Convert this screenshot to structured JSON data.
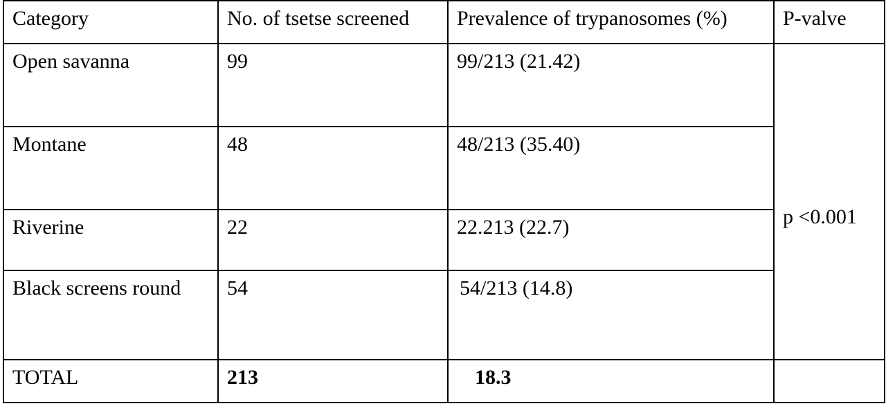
{
  "table": {
    "headers": [
      "Category",
      "No. of tsetse screened",
      "Prevalence of trypanosomes (%)",
      "P-valve"
    ],
    "rows": [
      {
        "category": "Open savanna",
        "screened": "99",
        "prevalence": "99/213  (21.42)"
      },
      {
        "category": "Montane",
        "screened": "48",
        "prevalence": "48/213  (35.40)"
      },
      {
        "category": "Riverine",
        "screened": "22",
        "prevalence": "22.213  (22.7)"
      },
      {
        "category": "Black screens round",
        "screened": "54",
        "prevalence": "54/213  (14.8)"
      }
    ],
    "p_value": "p <0.001",
    "total": {
      "label": "TOTAL",
      "screened": "213",
      "prevalence": "18.3"
    }
  }
}
